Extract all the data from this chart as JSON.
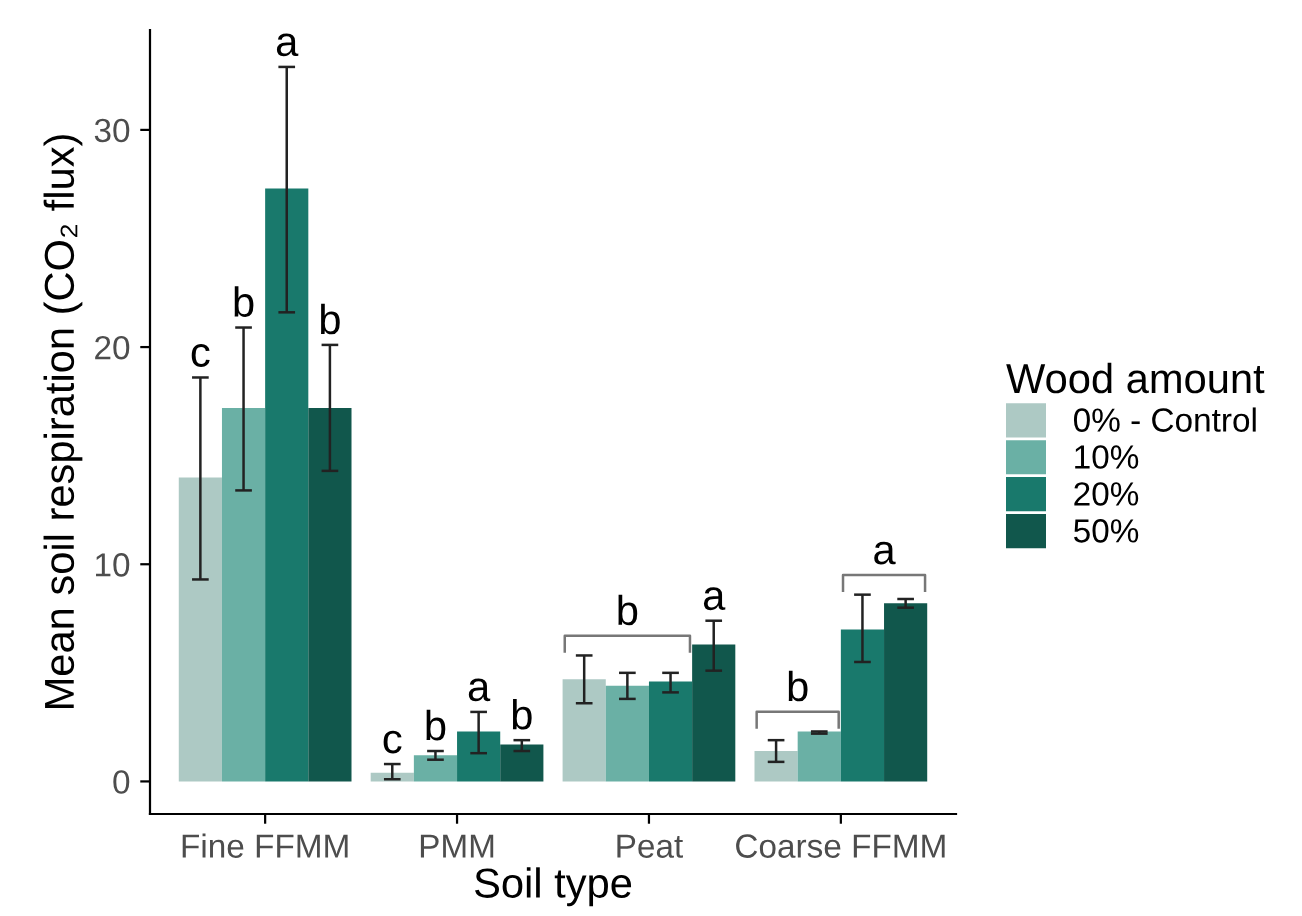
{
  "chart_data": {
    "type": "bar",
    "xlabel": "Soil type",
    "ylabel": "Mean soil respiration (CO₂ flux)",
    "legend_title": "Wood amount",
    "categories": [
      "Fine FFMM",
      "PMM",
      "Peat",
      "Coarse FFMM"
    ],
    "series": [
      {
        "name": "0% - Control",
        "color": "#adc9c4",
        "values": [
          14.0,
          0.4,
          4.7,
          1.4
        ],
        "errors": [
          [
            9.3,
            18.6
          ],
          [
            0.1,
            0.8
          ],
          [
            3.6,
            5.8
          ],
          [
            0.9,
            1.9
          ]
        ],
        "value_labels": [
          "c",
          "c",
          null,
          "b"
        ]
      },
      {
        "name": "10%",
        "color": "#6ab0a5",
        "values": [
          17.2,
          1.2,
          4.4,
          2.3
        ],
        "errors": [
          [
            13.4,
            20.9
          ],
          [
            1.0,
            1.4
          ],
          [
            3.8,
            5.0
          ],
          [
            2.2,
            2.3
          ]
        ],
        "value_labels": [
          "b",
          "b",
          "b",
          null
        ]
      },
      {
        "name": "20%",
        "color": "#19796c",
        "values": [
          27.3,
          2.3,
          4.6,
          7.0
        ],
        "errors": [
          [
            21.6,
            32.9
          ],
          [
            1.3,
            3.2
          ],
          [
            4.1,
            5.0
          ],
          [
            5.5,
            8.6
          ]
        ],
        "value_labels": [
          "a",
          "a",
          null,
          "a"
        ]
      },
      {
        "name": "50%",
        "color": "#11574c",
        "values": [
          17.2,
          1.7,
          6.3,
          8.2
        ],
        "errors": [
          [
            14.3,
            20.1
          ],
          [
            1.4,
            1.9
          ],
          [
            5.1,
            7.4
          ],
          [
            8.0,
            8.4
          ]
        ],
        "value_labels": [
          "b",
          "b",
          "a",
          null
        ]
      }
    ],
    "ylim": [
      -1.5,
      34.6
    ],
    "yticks": [
      0,
      10,
      20,
      30
    ],
    "grid": false,
    "legend": "right"
  }
}
